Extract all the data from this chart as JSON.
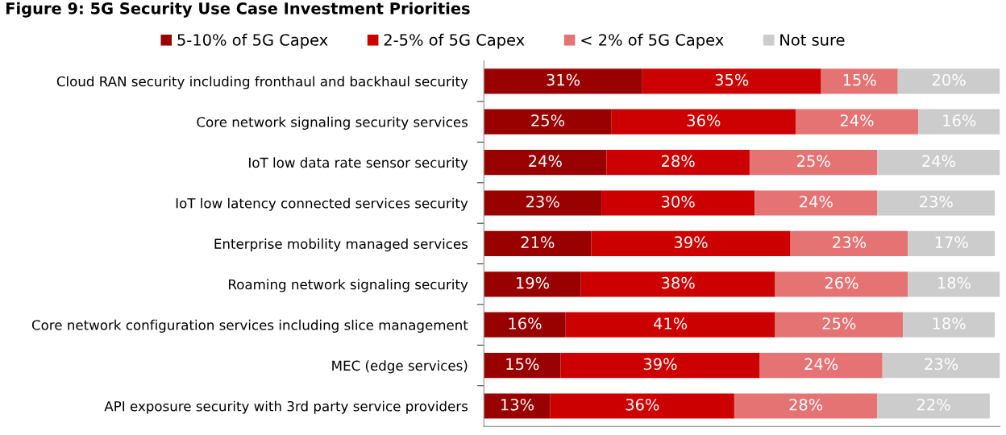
{
  "chart_data": {
    "type": "bar",
    "orientation": "horizontal",
    "stacked": true,
    "title": "Figure 9: 5G Security Use Case Investment Priorities",
    "categories": [
      "Cloud RAN security including fronthaul and backhaul security",
      "Core network signaling security services",
      "IoT low data rate sensor security",
      "IoT low latency connected services security",
      "Enterprise mobility managed services",
      "Roaming network signaling security",
      "Core network configuration services including slice management",
      "MEC (edge services)",
      "API exposure security with 3rd party service providers"
    ],
    "series": [
      {
        "name": "5-10% of 5G Capex",
        "color": "#990000",
        "values": [
          31,
          25,
          24,
          23,
          21,
          19,
          16,
          15,
          13
        ],
        "value_labels": [
          "31%",
          "25%",
          "24%",
          "23%",
          "21%",
          "19%",
          "16%",
          "15%",
          "13%"
        ]
      },
      {
        "name": "2-5% of 5G Capex",
        "color": "#cc0000",
        "values": [
          35,
          36,
          28,
          30,
          39,
          38,
          41,
          39,
          36
        ],
        "value_labels": [
          "35%",
          "36%",
          "28%",
          "30%",
          "39%",
          "38%",
          "41%",
          "39%",
          "36%"
        ]
      },
      {
        "name": "< 2% of 5G Capex",
        "color": "#e57373",
        "values": [
          15,
          24,
          25,
          24,
          23,
          26,
          25,
          24,
          28
        ],
        "value_labels": [
          "15%",
          "24%",
          "25%",
          "24%",
          "23%",
          "26%",
          "25%",
          "24%",
          "28%"
        ]
      },
      {
        "name": "Not sure",
        "color": "#cccccc",
        "values": [
          20,
          16,
          24,
          23,
          17,
          18,
          18,
          23,
          22
        ],
        "value_labels": [
          "20%",
          "16%",
          "24%",
          "23%",
          "17%",
          "18%",
          "18%",
          "23%",
          "22%"
        ]
      }
    ],
    "legend": "top",
    "tick_labels": "y",
    "grid": false
  }
}
